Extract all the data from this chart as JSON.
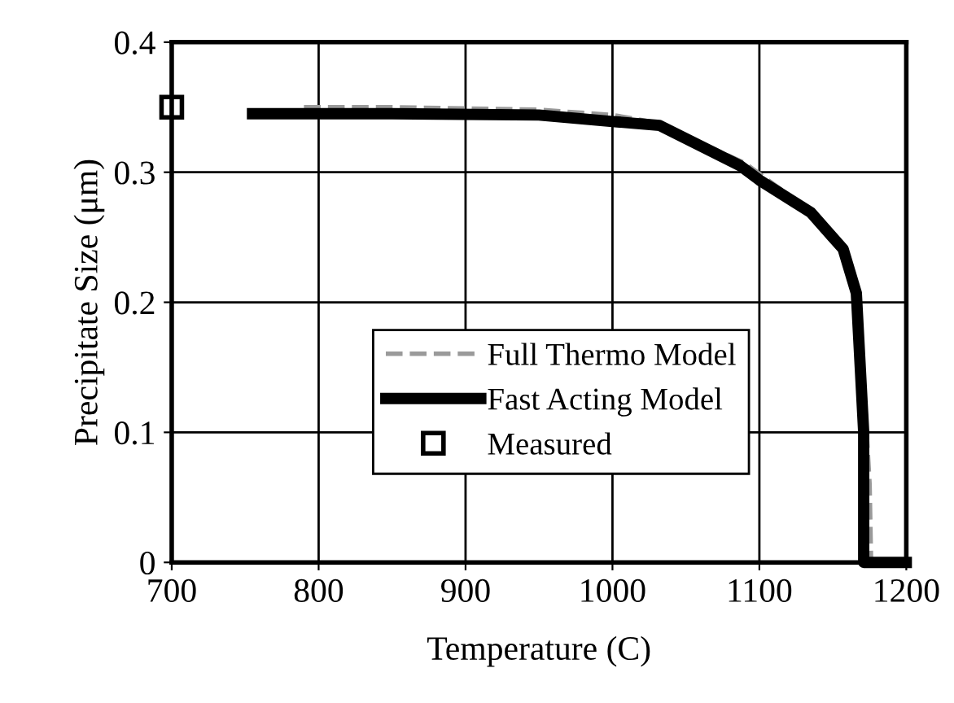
{
  "chart_data": {
    "type": "line",
    "xlabel": "Temperature (C)",
    "ylabel": "Precipitate Size (μm)",
    "xlim": [
      700,
      1200
    ],
    "xticks": [
      700,
      800,
      900,
      1000,
      1100,
      1200
    ],
    "ylim": [
      0,
      0.4
    ],
    "yticks": [
      0,
      0.1,
      0.2,
      0.3,
      0.4
    ],
    "grid": true,
    "legend": "bottom",
    "series": [
      {
        "name": "Full Thermo Model",
        "color": "#9a9a9a",
        "line_style": "dashed",
        "x": [
          790,
          850,
          950,
          1000,
          1030,
          1090,
          1135,
          1158,
          1168,
          1175,
          1176
        ],
        "values": [
          0.35,
          0.35,
          0.348,
          0.344,
          0.338,
          0.307,
          0.27,
          0.24,
          0.2,
          0.06,
          0
        ]
      },
      {
        "name": "Fast Acting Model",
        "color": "#000000",
        "line_style": "solid",
        "x": [
          755,
          850,
          950,
          1000,
          1032,
          1087,
          1100,
          1135,
          1157,
          1166,
          1171,
          1171,
          1200
        ],
        "values": [
          0.345,
          0.345,
          0.344,
          0.339,
          0.336,
          0.305,
          0.294,
          0.269,
          0.241,
          0.207,
          0.1,
          0,
          0
        ]
      },
      {
        "name": "Measured",
        "type": "scatter",
        "marker": "square",
        "color": "#000000",
        "x": [
          700
        ],
        "values": [
          0.35
        ]
      }
    ]
  }
}
